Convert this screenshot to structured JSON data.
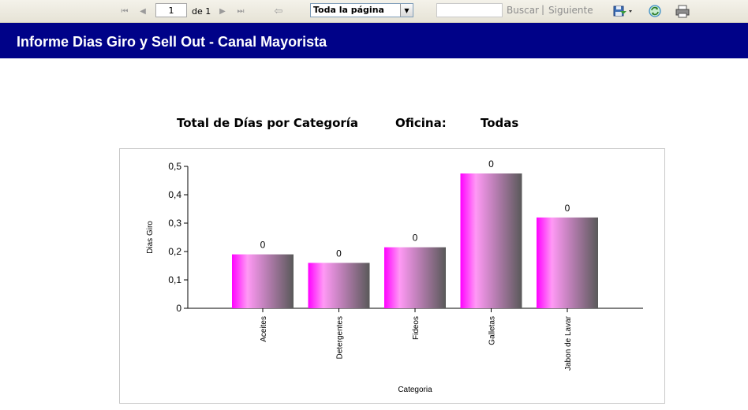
{
  "toolbar": {
    "first_icon": "⏮",
    "prev_icon": "◀",
    "page_value": "1",
    "page_of": "de 1",
    "next_icon": "▶",
    "last_icon": "⏭",
    "back_icon": "⇦",
    "zoom_value": "Toda la página",
    "dropdown_icon": "▼",
    "search_value": "",
    "find_label": "Buscar",
    "separator": "|",
    "next_label": "Siguiente",
    "export_icon": "save-icon",
    "refresh_icon": "refresh-icon",
    "print_icon": "print-icon"
  },
  "report": {
    "title": "Informe Dias Giro y Sell Out - Canal Mayorista",
    "chart_heading": "Total de Días por Categoría",
    "office_label": "Oficina:",
    "office_value": "Todas"
  },
  "chart_data": {
    "type": "bar",
    "title": "",
    "xlabel": "Categoria",
    "ylabel": "Dias Giro",
    "categories": [
      "Aceites",
      "Detergentes",
      "Fideos",
      "Galletas",
      "Jabon de Lavar"
    ],
    "values": [
      0.19,
      0.16,
      0.215,
      0.475,
      0.32
    ],
    "data_labels": [
      "0",
      "0",
      "0",
      "0",
      "0"
    ],
    "ylim": [
      0,
      0.5
    ],
    "yticks": [
      0,
      0.1,
      0.2,
      0.3,
      0.4,
      0.5
    ],
    "ytick_labels": [
      "0",
      "0,1",
      "0,2",
      "0,3",
      "0,4",
      "0,5"
    ],
    "grid": false,
    "legend": "none",
    "colors": {
      "bar_left": "#ff00ff",
      "bar_mid": "#ff99f5",
      "bar_right": "#595959",
      "axis": "#000000"
    }
  }
}
